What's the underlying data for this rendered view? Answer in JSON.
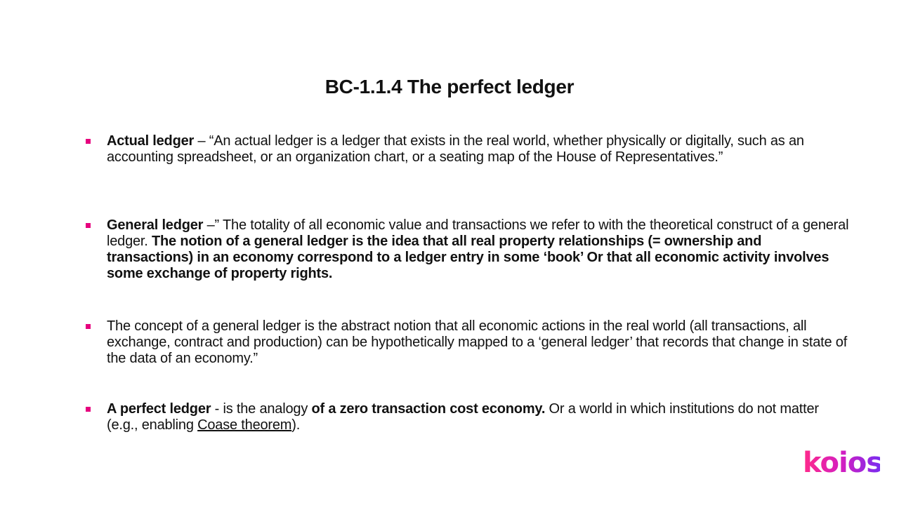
{
  "slide": {
    "title": "BC-1.1.4 The perfect ledger",
    "bullets": [
      {
        "segments": [
          {
            "text": "Actual ledger",
            "bold": true
          },
          {
            "text": " – “An actual ledger is a ledger that exists in the real world, whether physically or digitally, such as an accounting spreadsheet, or an organization chart, or a seating map of the House of Representatives.”",
            "bold": false
          }
        ]
      },
      {
        "segments": [
          {
            "text": "General ledger",
            "bold": true
          },
          {
            "text": " –” The totality of all economic value and transactions we refer to with the theoretical construct of a general ledger. ",
            "bold": false
          },
          {
            "text": "The notion of a general ledger is the idea that all real property relationships (= ownership and transactions) in an economy correspond to a ledger entry in some ‘book’ Or that all economic activity involves some exchange of property rights.",
            "bold": true
          }
        ]
      },
      {
        "segments": [
          {
            "text": "The concept of a general ledger is the abstract notion that all economic actions in the real world (all transactions, all exchange, contract and production) can be hypothetically mapped to a ‘general ledger’ that records that change in state of the data of an economy.”",
            "bold": false
          }
        ]
      },
      {
        "segments": [
          {
            "text": "A perfect ledger",
            "bold": true
          },
          {
            "text": " - is the analogy ",
            "bold": false
          },
          {
            "text": "of a zero transaction cost economy.",
            "bold": true
          },
          {
            "text": " Or a world in which institutions do not matter (e.g., enabling ",
            "bold": false
          },
          {
            "text": "Coase theorem",
            "bold": false,
            "link": true
          },
          {
            "text": ").",
            "bold": false
          }
        ]
      }
    ]
  },
  "brand": {
    "logo_text": "koios",
    "accent": "#e6007e",
    "gradient_start": "#ff2a8a",
    "gradient_end": "#7a2cf0"
  }
}
